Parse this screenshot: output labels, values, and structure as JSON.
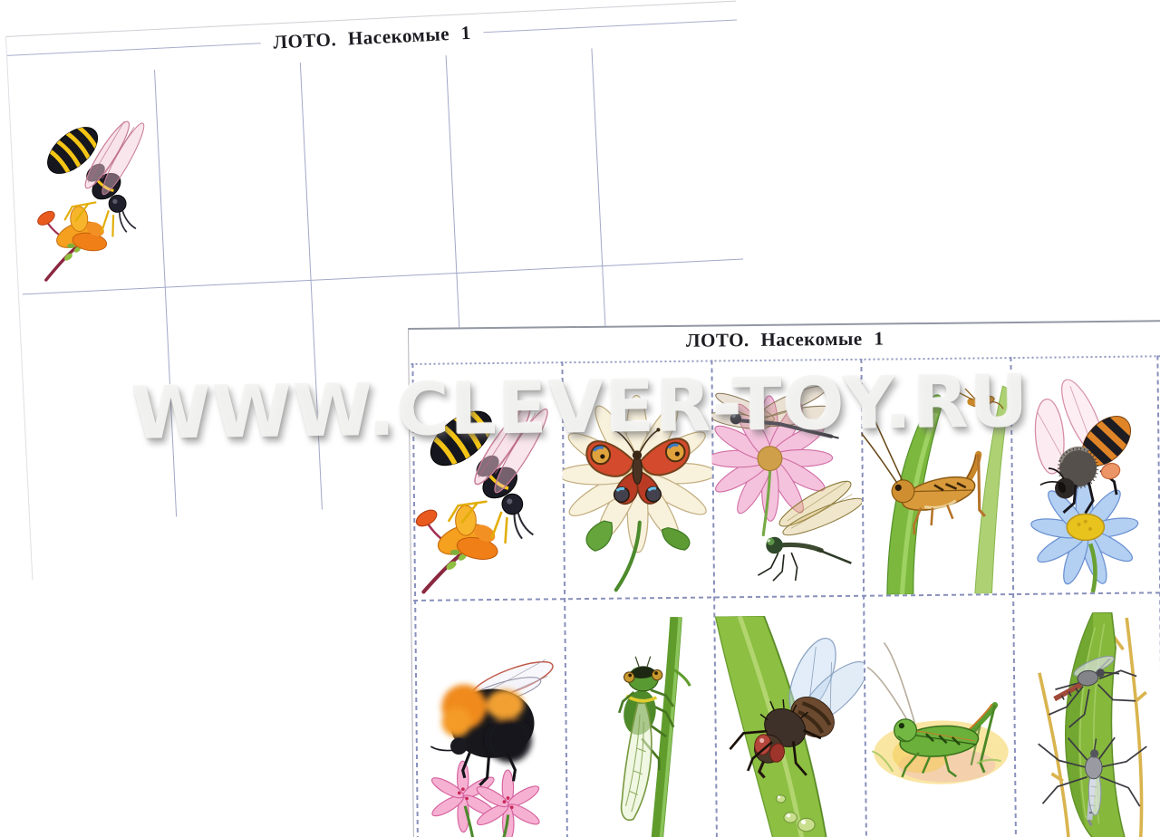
{
  "watermark": {
    "text": "WWW.CLEVER-TOY.RU"
  },
  "back_card": {
    "title": "ЛОТО. Насекомые 1",
    "rows": 2,
    "columns": 5,
    "cells": [
      {
        "id": "wasp",
        "label": "wasp on orange flower"
      }
    ]
  },
  "front_card": {
    "title": "ЛОТО. Насекомые 1",
    "rows": 2,
    "columns": 5,
    "cells": [
      {
        "id": "wasp",
        "label": "wasp on orange flower"
      },
      {
        "id": "butterfly",
        "label": "peacock butterfly on daisy"
      },
      {
        "id": "dragonflies",
        "label": "two dragonflies on pink flower"
      },
      {
        "id": "grasshopper-leaf",
        "label": "brown grasshopper on grass blade"
      },
      {
        "id": "bee",
        "label": "honey bee on blue flower"
      },
      {
        "id": "bumblebee",
        "label": "bumblebee on pink flowers"
      },
      {
        "id": "cicada",
        "label": "green cicada on stem"
      },
      {
        "id": "fly",
        "label": "fly on leaf with dew drops"
      },
      {
        "id": "green-grasshopper",
        "label": "green grasshopper"
      },
      {
        "id": "mosquitoes",
        "label": "two mosquitoes on leaf"
      }
    ]
  },
  "colors": {
    "background": "#ffffff",
    "grid_line": "#a2a8c8",
    "dashed_cut_line": "#8890bc",
    "title_text": "#1c1c22",
    "watermark_fill": "#f3f3f1"
  }
}
